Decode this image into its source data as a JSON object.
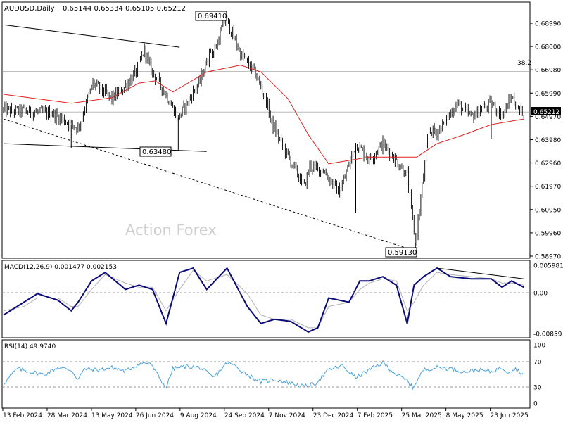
{
  "header": {
    "symbol": "AUDUSD,Daily",
    "ohlc": "0.65144 0.65334 0.65105 0.65212"
  },
  "watermark": "Action Forex",
  "macd": {
    "label": "MACD(12,26,9) 0.001477 0.002153"
  },
  "rsi": {
    "label": "RSI(14) 49.9740"
  },
  "price_labels": {
    "current": "0.65212",
    "high": "0.69410",
    "mid_low": "0.63480",
    "low": "0.59130",
    "fib": "38.2"
  },
  "colors": {
    "candle": "#000000",
    "ma": "#e0201f",
    "macd_main": "#0b0b7a",
    "macd_signal": "#b0b0b0",
    "rsi_line": "#4aa3df",
    "current_bg": "#000000"
  },
  "chart_data": [
    {
      "type": "candlestick",
      "title": "",
      "y_ticks": [
        "0.68990",
        "0.68000",
        "0.66980",
        "0.65990",
        "0.64970",
        "0.63980",
        "0.62960",
        "0.61970",
        "0.60950",
        "0.59960",
        "0.58970"
      ],
      "x_ticks": [
        "13 Feb 2024",
        "28 Mar 2024",
        "13 May 2024",
        "26 Jun 2024",
        "9 Aug 2024",
        "24 Sep 2024",
        "7 Nov 2024",
        "23 Dec 2024",
        "7 Feb 2025",
        "25 Mar 2025",
        "8 May 2025",
        "23 Jun 2025"
      ],
      "ylim": [
        0.5875,
        0.7005
      ],
      "anchors": {
        "x": [
          0,
          36,
          55,
          66,
          80,
          88,
          98,
          104,
          108,
          118,
          129,
          145,
          153,
          155,
          164,
          175,
          186,
          194,
          198,
          212,
          222,
          226,
          236,
          248,
          260,
          270,
          280,
          298,
          304,
          314,
          320,
          335,
          345,
          360,
          368,
          375,
          380,
          384
        ],
        "close": [
          0.653,
          0.6515,
          0.645,
          0.665,
          0.658,
          0.6625,
          0.67,
          0.68,
          0.672,
          0.662,
          0.6495,
          0.666,
          0.68,
          0.678,
          0.6941,
          0.678,
          0.669,
          0.657,
          0.647,
          0.63,
          0.619,
          0.628,
          0.626,
          0.616,
          0.638,
          0.631,
          0.638,
          0.624,
          0.5935,
          0.644,
          0.643,
          0.656,
          0.65,
          0.656,
          0.65,
          0.659,
          0.653,
          0.6521
        ]
      },
      "moving_average": {
        "x": [
          0,
          50,
          80,
          100,
          112,
          125,
          150,
          175,
          190,
          210,
          225,
          240,
          255,
          270,
          290,
          305,
          320,
          340,
          360,
          384
        ],
        "y": [
          0.66,
          0.656,
          0.6585,
          0.665,
          0.666,
          0.661,
          0.67,
          0.673,
          0.67,
          0.658,
          0.642,
          0.629,
          0.6305,
          0.632,
          0.632,
          0.632,
          0.638,
          0.642,
          0.6465,
          0.649
        ]
      },
      "trendlines": [
        {
          "style": "solid",
          "x": [
            0,
            130
          ],
          "y": [
            0.691,
            0.681
          ]
        },
        {
          "style": "solid",
          "x": [
            0,
            150
          ],
          "y": [
            0.638,
            0.6345
          ]
        },
        {
          "style": "dashed",
          "x": [
            0,
            298
          ],
          "y": [
            0.649,
            0.5913
          ]
        }
      ],
      "horizontal_levels": [
        0.67,
        0.6521
      ]
    },
    {
      "type": "line",
      "title": "MACD(12,26,9)",
      "y_ticks": [
        "0.005981",
        "0.00",
        "-0.00859"
      ],
      "ylim": [
        -0.01,
        0.0075
      ],
      "series": [
        {
          "name": "macd",
          "x": [
            0,
            15,
            25,
            40,
            50,
            55,
            65,
            75,
            90,
            100,
            110,
            120,
            130,
            140,
            150,
            165,
            180,
            190,
            200,
            212,
            225,
            232,
            240,
            255,
            263,
            270,
            280,
            290,
            298,
            303,
            310,
            320,
            330,
            345,
            360,
            368,
            375,
            384
          ],
          "y": [
            -0.005,
            -0.002,
            0.0,
            -0.0015,
            -0.004,
            -0.002,
            0.003,
            0.005,
            0.001,
            0.002,
            0.001,
            -0.007,
            0.005,
            0.006,
            0.001,
            0.006,
            -0.003,
            -0.007,
            -0.006,
            -0.0065,
            -0.009,
            -0.008,
            -0.001,
            -0.002,
            0.003,
            0.003,
            0.004,
            0.002,
            -0.007,
            0.002,
            0.004,
            0.006,
            0.004,
            0.0035,
            0.0035,
            0.0015,
            0.003,
            0.0015
          ]
        },
        {
          "name": "signal",
          "x": [
            0,
            15,
            25,
            40,
            50,
            55,
            65,
            75,
            90,
            100,
            110,
            120,
            130,
            140,
            150,
            165,
            180,
            190,
            200,
            212,
            225,
            232,
            240,
            255,
            263,
            270,
            280,
            290,
            298,
            303,
            310,
            320,
            330,
            345,
            360,
            368,
            375,
            384
          ],
          "y": [
            -0.004,
            -0.003,
            -0.001,
            -0.001,
            -0.003,
            -0.003,
            0.001,
            0.0045,
            0.0025,
            0.0015,
            0.0015,
            -0.004,
            0.001,
            0.0055,
            0.003,
            0.0045,
            0.0,
            -0.005,
            -0.006,
            -0.006,
            -0.008,
            -0.008,
            -0.003,
            -0.002,
            0.001,
            0.0025,
            0.0035,
            0.003,
            -0.004,
            -0.002,
            0.002,
            0.005,
            0.0045,
            0.004,
            0.0035,
            0.0025,
            0.0025,
            0.002
          ]
        }
      ],
      "trendlines": [
        {
          "style": "solid",
          "x": [
            320,
            384
          ],
          "y": [
            0.006,
            0.0035
          ]
        }
      ]
    },
    {
      "type": "line",
      "title": "RSI(14)",
      "y_ticks": [
        "100",
        "70",
        "30",
        "0"
      ],
      "ylim": [
        0,
        100
      ],
      "series": [
        {
          "name": "rsi",
          "x": [
            0,
            10,
            20,
            30,
            40,
            50,
            55,
            60,
            70,
            80,
            90,
            100,
            108,
            115,
            120,
            125,
            135,
            145,
            155,
            165,
            170,
            180,
            190,
            200,
            212,
            222,
            230,
            240,
            250,
            260,
            270,
            280,
            290,
            298,
            302,
            310,
            320,
            330,
            340,
            350,
            360,
            368,
            372,
            378,
            384
          ],
          "y": [
            35,
            60,
            55,
            50,
            62,
            58,
            42,
            60,
            58,
            62,
            56,
            68,
            70,
            45,
            28,
            60,
            64,
            62,
            45,
            70,
            66,
            50,
            38,
            42,
            36,
            30,
            35,
            58,
            65,
            45,
            58,
            70,
            50,
            40,
            28,
            58,
            62,
            60,
            55,
            58,
            55,
            62,
            55,
            60,
            50
          ]
        }
      ]
    }
  ]
}
